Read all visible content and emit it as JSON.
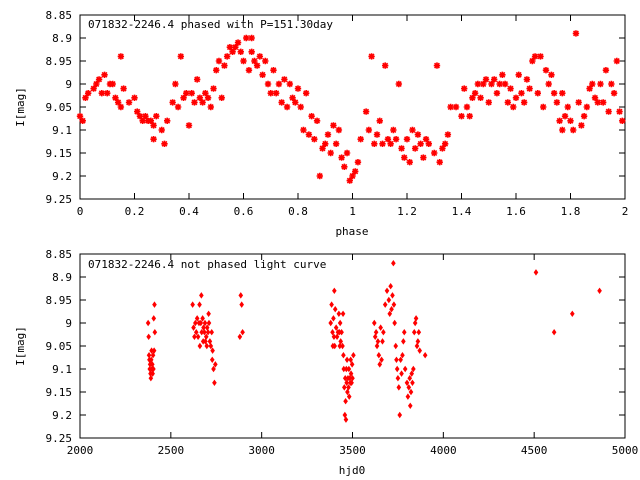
{
  "chart_data": [
    {
      "type": "scatter",
      "title": "071832-2246.4 phased with P=151.30day",
      "xlabel": "phase",
      "ylabel": "I[mag]",
      "xlim": [
        0,
        2
      ],
      "ylim": [
        8.85,
        9.25
      ],
      "y_inverted": true,
      "x_ticks": [
        "0",
        "0.2",
        "0.4",
        "0.6",
        "0.8",
        "1",
        "1.2",
        "1.4",
        "1.6",
        "1.8",
        "2"
      ],
      "y_ticks": [
        "8.85",
        "8.9",
        "8.95",
        "9",
        "9.05",
        "9.1",
        "9.15",
        "9.2",
        "9.25"
      ],
      "marker_color": "#ff0000",
      "points": [
        [
          0.0,
          9.07
        ],
        [
          0.01,
          9.08
        ],
        [
          0.02,
          9.03
        ],
        [
          0.03,
          9.02
        ],
        [
          0.05,
          9.01
        ],
        [
          0.06,
          9.0
        ],
        [
          0.07,
          8.99
        ],
        [
          0.08,
          9.02
        ],
        [
          0.09,
          8.98
        ],
        [
          0.1,
          9.02
        ],
        [
          0.11,
          9.0
        ],
        [
          0.12,
          9.0
        ],
        [
          0.13,
          9.03
        ],
        [
          0.14,
          9.04
        ],
        [
          0.15,
          9.05
        ],
        [
          0.16,
          9.01
        ],
        [
          0.15,
          8.94
        ],
        [
          0.18,
          9.04
        ],
        [
          0.2,
          9.03
        ],
        [
          0.21,
          9.06
        ],
        [
          0.22,
          9.07
        ],
        [
          0.23,
          9.08
        ],
        [
          0.24,
          9.07
        ],
        [
          0.25,
          9.08
        ],
        [
          0.26,
          9.08
        ],
        [
          0.27,
          9.09
        ],
        [
          0.27,
          9.12
        ],
        [
          0.28,
          9.07
        ],
        [
          0.3,
          9.1
        ],
        [
          0.31,
          9.13
        ],
        [
          0.32,
          9.08
        ],
        [
          0.34,
          9.04
        ],
        [
          0.35,
          9.0
        ],
        [
          0.36,
          9.05
        ],
        [
          0.37,
          8.94
        ],
        [
          0.38,
          9.03
        ],
        [
          0.39,
          9.02
        ],
        [
          0.4,
          9.09
        ],
        [
          0.41,
          9.02
        ],
        [
          0.42,
          9.04
        ],
        [
          0.43,
          8.99
        ],
        [
          0.44,
          9.03
        ],
        [
          0.45,
          9.04
        ],
        [
          0.46,
          9.02
        ],
        [
          0.47,
          9.03
        ],
        [
          0.48,
          9.05
        ],
        [
          0.49,
          9.01
        ],
        [
          0.5,
          8.97
        ],
        [
          0.51,
          8.95
        ],
        [
          0.52,
          9.03
        ],
        [
          0.53,
          8.96
        ],
        [
          0.54,
          8.94
        ],
        [
          0.55,
          8.92
        ],
        [
          0.56,
          8.93
        ],
        [
          0.57,
          8.92
        ],
        [
          0.58,
          8.91
        ],
        [
          0.59,
          8.93
        ],
        [
          0.6,
          8.95
        ],
        [
          0.61,
          8.9
        ],
        [
          0.62,
          8.97
        ],
        [
          0.63,
          8.93
        ],
        [
          0.63,
          8.9
        ],
        [
          0.64,
          8.95
        ],
        [
          0.65,
          8.96
        ],
        [
          0.66,
          8.94
        ],
        [
          0.67,
          8.98
        ],
        [
          0.68,
          8.95
        ],
        [
          0.69,
          9.0
        ],
        [
          0.7,
          9.02
        ],
        [
          0.71,
          8.97
        ],
        [
          0.72,
          9.02
        ],
        [
          0.73,
          9.0
        ],
        [
          0.74,
          9.04
        ],
        [
          0.75,
          8.99
        ],
        [
          0.76,
          9.05
        ],
        [
          0.77,
          9.0
        ],
        [
          0.78,
          9.03
        ],
        [
          0.79,
          9.04
        ],
        [
          0.8,
          9.01
        ],
        [
          0.81,
          9.05
        ],
        [
          0.82,
          9.1
        ],
        [
          0.83,
          9.02
        ],
        [
          0.84,
          9.11
        ],
        [
          0.85,
          9.07
        ],
        [
          0.86,
          9.12
        ],
        [
          0.87,
          9.08
        ],
        [
          0.88,
          9.2
        ],
        [
          0.89,
          9.14
        ],
        [
          0.9,
          9.13
        ],
        [
          0.91,
          9.11
        ],
        [
          0.92,
          9.15
        ],
        [
          0.93,
          9.09
        ],
        [
          0.94,
          9.13
        ],
        [
          0.95,
          9.1
        ],
        [
          0.96,
          9.16
        ],
        [
          0.97,
          9.18
        ],
        [
          0.98,
          9.15
        ],
        [
          0.99,
          9.21
        ],
        [
          1.0,
          9.2
        ],
        [
          1.01,
          9.19
        ],
        [
          1.02,
          9.17
        ],
        [
          1.03,
          9.12
        ],
        [
          1.05,
          9.06
        ],
        [
          1.06,
          9.1
        ],
        [
          1.07,
          8.94
        ],
        [
          1.08,
          9.13
        ],
        [
          1.09,
          9.11
        ],
        [
          1.1,
          9.08
        ],
        [
          1.11,
          9.13
        ],
        [
          1.12,
          8.96
        ],
        [
          1.13,
          9.12
        ],
        [
          1.14,
          9.13
        ],
        [
          1.15,
          9.1
        ],
        [
          1.16,
          9.12
        ],
        [
          1.17,
          9.0
        ],
        [
          1.18,
          9.14
        ],
        [
          1.19,
          9.16
        ],
        [
          1.2,
          9.12
        ],
        [
          1.21,
          9.17
        ],
        [
          1.22,
          9.1
        ],
        [
          1.23,
          9.14
        ],
        [
          1.24,
          9.11
        ],
        [
          1.25,
          9.13
        ],
        [
          1.26,
          9.16
        ],
        [
          1.27,
          9.12
        ],
        [
          1.28,
          9.13
        ],
        [
          1.3,
          9.15
        ],
        [
          1.31,
          8.96
        ],
        [
          1.32,
          9.17
        ],
        [
          1.33,
          9.14
        ],
        [
          1.34,
          9.13
        ],
        [
          1.35,
          9.11
        ],
        [
          1.36,
          9.05
        ],
        [
          1.38,
          9.05
        ],
        [
          1.4,
          9.07
        ],
        [
          1.41,
          9.01
        ],
        [
          1.42,
          9.05
        ],
        [
          1.43,
          9.07
        ],
        [
          1.44,
          9.03
        ],
        [
          1.45,
          9.02
        ],
        [
          1.46,
          9.0
        ],
        [
          1.47,
          9.03
        ],
        [
          1.48,
          9.0
        ],
        [
          1.49,
          8.99
        ],
        [
          1.5,
          9.04
        ],
        [
          1.51,
          9.0
        ],
        [
          1.52,
          8.99
        ],
        [
          1.53,
          9.02
        ],
        [
          1.54,
          9.0
        ],
        [
          1.55,
          8.98
        ],
        [
          1.56,
          9.0
        ],
        [
          1.57,
          9.04
        ],
        [
          1.58,
          9.01
        ],
        [
          1.59,
          9.05
        ],
        [
          1.6,
          9.03
        ],
        [
          1.61,
          8.98
        ],
        [
          1.62,
          9.02
        ],
        [
          1.63,
          9.04
        ],
        [
          1.64,
          8.99
        ],
        [
          1.65,
          9.01
        ],
        [
          1.66,
          8.95
        ],
        [
          1.67,
          8.94
        ],
        [
          1.68,
          9.02
        ],
        [
          1.69,
          8.94
        ],
        [
          1.7,
          9.05
        ],
        [
          1.71,
          8.97
        ],
        [
          1.72,
          9.0
        ],
        [
          1.73,
          8.98
        ],
        [
          1.74,
          9.02
        ],
        [
          1.75,
          9.04
        ],
        [
          1.76,
          9.08
        ],
        [
          1.77,
          9.1
        ],
        [
          1.77,
          9.02
        ],
        [
          1.78,
          9.07
        ],
        [
          1.79,
          9.05
        ],
        [
          1.8,
          9.08
        ],
        [
          1.81,
          9.1
        ],
        [
          1.82,
          8.89
        ],
        [
          1.83,
          9.04
        ],
        [
          1.84,
          9.09
        ],
        [
          1.85,
          9.07
        ],
        [
          1.86,
          9.05
        ],
        [
          1.87,
          9.01
        ],
        [
          1.88,
          9.0
        ],
        [
          1.89,
          9.03
        ],
        [
          1.9,
          9.04
        ],
        [
          1.91,
          9.0
        ],
        [
          1.92,
          9.04
        ],
        [
          1.93,
          8.97
        ],
        [
          1.94,
          9.06
        ],
        [
          1.95,
          9.0
        ],
        [
          1.96,
          9.02
        ],
        [
          1.97,
          8.95
        ],
        [
          1.98,
          9.06
        ],
        [
          1.99,
          9.08
        ]
      ]
    },
    {
      "type": "scatter",
      "title": "071832-2246.4 not phased light curve",
      "xlabel": "hjd0",
      "ylabel": "I[mag]",
      "xlim": [
        2000,
        5000
      ],
      "ylim": [
        8.85,
        9.25
      ],
      "y_inverted": true,
      "x_ticks": [
        "2000",
        "2500",
        "3000",
        "3500",
        "4000",
        "4500",
        "5000"
      ],
      "y_ticks": [
        "8.85",
        "8.9",
        "8.95",
        "9",
        "9.05",
        "9.1",
        "9.15",
        "9.2",
        "9.25"
      ],
      "marker_color": "#ff0000",
      "points": [
        [
          2375,
          9.0
        ],
        [
          2378,
          9.03
        ],
        [
          2380,
          9.07
        ],
        [
          2382,
          9.08
        ],
        [
          2384,
          9.1
        ],
        [
          2386,
          9.09
        ],
        [
          2388,
          9.11
        ],
        [
          2390,
          9.12
        ],
        [
          2392,
          9.08
        ],
        [
          2394,
          9.06
        ],
        [
          2396,
          9.1
        ],
        [
          2398,
          9.09
        ],
        [
          2400,
          9.11
        ],
        [
          2402,
          9.07
        ],
        [
          2404,
          9.1
        ],
        [
          2406,
          8.99
        ],
        [
          2408,
          9.06
        ],
        [
          2410,
          8.96
        ],
        [
          2412,
          9.02
        ],
        [
          2620,
          8.96
        ],
        [
          2625,
          9.01
        ],
        [
          2630,
          9.03
        ],
        [
          2635,
          9.0
        ],
        [
          2640,
          9.02
        ],
        [
          2645,
          8.99
        ],
        [
          2650,
          9.03
        ],
        [
          2655,
          9.0
        ],
        [
          2658,
          8.96
        ],
        [
          2660,
          9.05
        ],
        [
          2665,
          9.0
        ],
        [
          2668,
          8.94
        ],
        [
          2670,
          9.02
        ],
        [
          2675,
          8.99
        ],
        [
          2678,
          9.04
        ],
        [
          2680,
          9.01
        ],
        [
          2685,
          9.02
        ],
        [
          2688,
          9.0
        ],
        [
          2690,
          9.04
        ],
        [
          2695,
          9.03
        ],
        [
          2698,
          9.05
        ],
        [
          2700,
          9.01
        ],
        [
          2705,
          9.02
        ],
        [
          2708,
          8.98
        ],
        [
          2710,
          9.0
        ],
        [
          2715,
          9.04
        ],
        [
          2720,
          9.05
        ],
        [
          2725,
          9.02
        ],
        [
          2728,
          9.08
        ],
        [
          2730,
          9.06
        ],
        [
          2735,
          9.1
        ],
        [
          2740,
          9.13
        ],
        [
          2745,
          9.09
        ],
        [
          2880,
          9.03
        ],
        [
          2885,
          8.94
        ],
        [
          2890,
          8.96
        ],
        [
          2895,
          9.02
        ],
        [
          3380,
          9.0
        ],
        [
          3385,
          8.96
        ],
        [
          3390,
          9.02
        ],
        [
          3392,
          9.05
        ],
        [
          3395,
          8.99
        ],
        [
          3398,
          9.03
        ],
        [
          3400,
          8.93
        ],
        [
          3402,
          9.05
        ],
        [
          3405,
          8.97
        ],
        [
          3410,
          9.01
        ],
        [
          3415,
          9.03
        ],
        [
          3420,
          9.02
        ],
        [
          3425,
          8.98
        ],
        [
          3428,
          9.02
        ],
        [
          3430,
          9.05
        ],
        [
          3432,
          9.0
        ],
        [
          3435,
          9.04
        ],
        [
          3440,
          9.02
        ],
        [
          3445,
          9.05
        ],
        [
          3448,
          8.98
        ],
        [
          3450,
          9.07
        ],
        [
          3452,
          9.1
        ],
        [
          3455,
          9.14
        ],
        [
          3458,
          9.2
        ],
        [
          3460,
          9.12
        ],
        [
          3462,
          9.17
        ],
        [
          3464,
          9.21
        ],
        [
          3466,
          9.1
        ],
        [
          3468,
          9.13
        ],
        [
          3470,
          9.08
        ],
        [
          3472,
          9.15
        ],
        [
          3475,
          9.12
        ],
        [
          3478,
          9.14
        ],
        [
          3480,
          9.1
        ],
        [
          3482,
          9.16
        ],
        [
          3485,
          9.12
        ],
        [
          3488,
          9.13
        ],
        [
          3490,
          9.08
        ],
        [
          3492,
          9.11
        ],
        [
          3495,
          9.13
        ],
        [
          3498,
          9.09
        ],
        [
          3500,
          9.12
        ],
        [
          3505,
          9.07
        ],
        [
          3620,
          9.0
        ],
        [
          3625,
          9.03
        ],
        [
          3630,
          9.02
        ],
        [
          3635,
          9.05
        ],
        [
          3640,
          9.04
        ],
        [
          3645,
          9.07
        ],
        [
          3650,
          9.09
        ],
        [
          3655,
          9.01
        ],
        [
          3660,
          9.08
        ],
        [
          3665,
          9.04
        ],
        [
          3670,
          9.02
        ],
        [
          3680,
          8.96
        ],
        [
          3690,
          8.93
        ],
        [
          3700,
          8.95
        ],
        [
          3705,
          8.98
        ],
        [
          3710,
          8.92
        ],
        [
          3715,
          8.97
        ],
        [
          3720,
          8.94
        ],
        [
          3725,
          8.87
        ],
        [
          3728,
          8.96
        ],
        [
          3732,
          9.0
        ],
        [
          3738,
          9.05
        ],
        [
          3742,
          9.08
        ],
        [
          3746,
          9.1
        ],
        [
          3750,
          9.12
        ],
        [
          3755,
          9.14
        ],
        [
          3760,
          9.2
        ],
        [
          3765,
          9.08
        ],
        [
          3770,
          9.11
        ],
        [
          3775,
          9.07
        ],
        [
          3780,
          9.04
        ],
        [
          3785,
          9.02
        ],
        [
          3790,
          9.1
        ],
        [
          3800,
          9.13
        ],
        [
          3805,
          9.16
        ],
        [
          3810,
          9.14
        ],
        [
          3815,
          9.12
        ],
        [
          3818,
          9.18
        ],
        [
          3822,
          9.15
        ],
        [
          3826,
          9.11
        ],
        [
          3830,
          9.13
        ],
        [
          3835,
          9.1
        ],
        [
          3840,
          9.02
        ],
        [
          3845,
          9.0
        ],
        [
          3850,
          8.99
        ],
        [
          3855,
          9.05
        ],
        [
          3860,
          9.04
        ],
        [
          3865,
          9.02
        ],
        [
          3870,
          9.06
        ],
        [
          3900,
          9.07
        ],
        [
          4510,
          8.89
        ],
        [
          4610,
          9.02
        ],
        [
          4710,
          8.98
        ],
        [
          4860,
          8.93
        ]
      ]
    }
  ]
}
